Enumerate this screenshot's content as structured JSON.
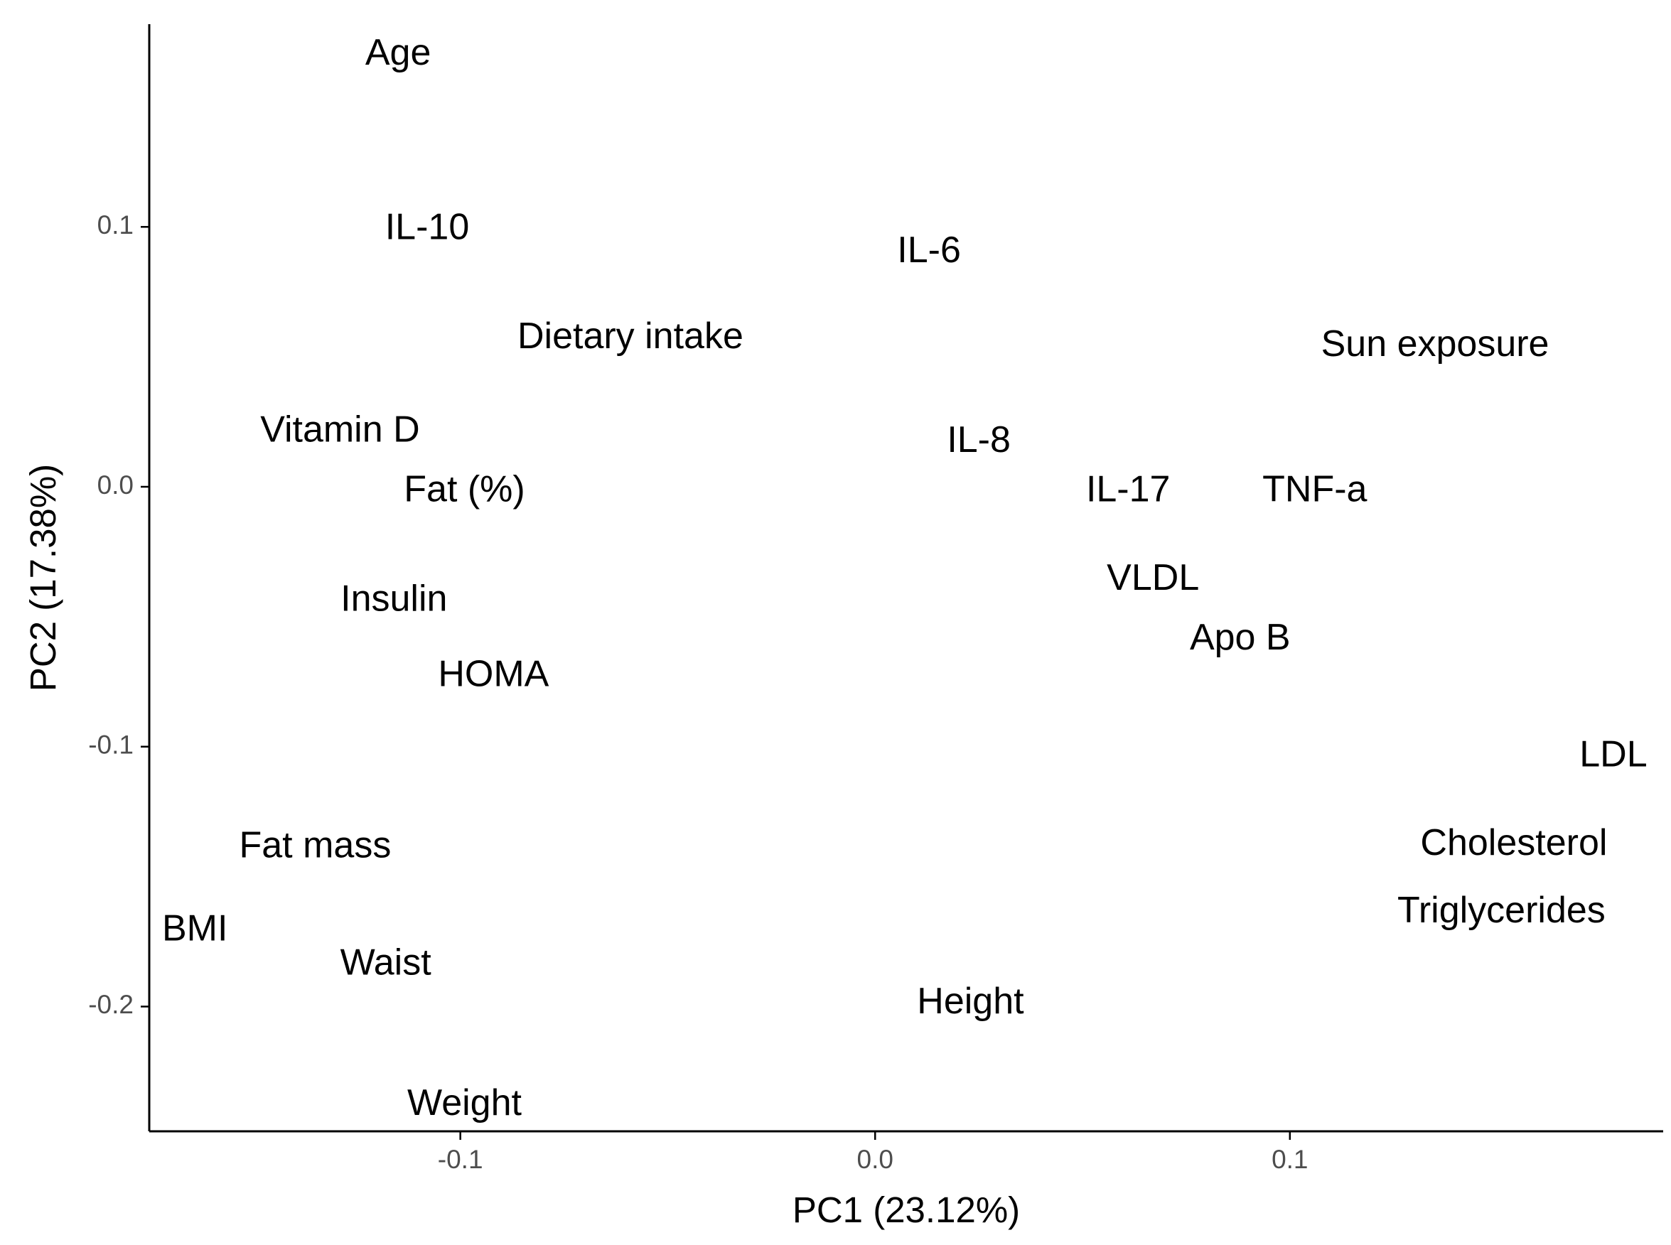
{
  "chart_data": {
    "type": "scatter",
    "title": "",
    "xlabel": "PC1 (23.12%)",
    "ylabel": "PC2 (17.38%)",
    "xlim": [
      -0.175,
      0.19
    ],
    "ylim": [
      -0.248,
      0.178
    ],
    "grid": false,
    "legend": "none",
    "x_ticks": [
      {
        "value": -0.1,
        "label": "-0.1"
      },
      {
        "value": 0.0,
        "label": "0.0"
      },
      {
        "value": 0.1,
        "label": "0.1"
      }
    ],
    "y_ticks": [
      {
        "value": 0.1,
        "label": "0.1"
      },
      {
        "value": 0.0,
        "label": "0.0"
      },
      {
        "value": -0.1,
        "label": "-0.1"
      },
      {
        "value": -0.2,
        "label": "-0.2"
      }
    ],
    "points": [
      {
        "label": "Age",
        "x": -0.115,
        "y": 0.167
      },
      {
        "label": "IL-10",
        "x": -0.108,
        "y": 0.1
      },
      {
        "label": "IL-6",
        "x": 0.013,
        "y": 0.091
      },
      {
        "label": "Dietary intake",
        "x": -0.059,
        "y": 0.058
      },
      {
        "label": "Sun exposure",
        "x": 0.135,
        "y": 0.055
      },
      {
        "label": "Vitamin D",
        "x": -0.129,
        "y": 0.022
      },
      {
        "label": "IL-8",
        "x": 0.025,
        "y": 0.018
      },
      {
        "label": "Fat (%)",
        "x": -0.099,
        "y": -0.001
      },
      {
        "label": "IL-17",
        "x": 0.061,
        "y": -0.001
      },
      {
        "label": "TNF-a",
        "x": 0.106,
        "y": -0.001
      },
      {
        "label": "VLDL",
        "x": 0.067,
        "y": -0.035
      },
      {
        "label": "Insulin",
        "x": -0.116,
        "y": -0.043
      },
      {
        "label": "Apo B",
        "x": 0.088,
        "y": -0.058
      },
      {
        "label": "HOMA",
        "x": -0.092,
        "y": -0.072
      },
      {
        "label": "LDL",
        "x": 0.178,
        "y": -0.103
      },
      {
        "label": "Fat mass",
        "x": -0.135,
        "y": -0.138
      },
      {
        "label": "Cholesterol",
        "x": 0.154,
        "y": -0.137
      },
      {
        "label": "Triglycerides",
        "x": 0.151,
        "y": -0.163
      },
      {
        "label": "BMI",
        "x": -0.164,
        "y": -0.17
      },
      {
        "label": "Waist",
        "x": -0.118,
        "y": -0.183
      },
      {
        "label": "Height",
        "x": 0.023,
        "y": -0.198
      },
      {
        "label": "Weight",
        "x": -0.099,
        "y": -0.237
      }
    ]
  }
}
